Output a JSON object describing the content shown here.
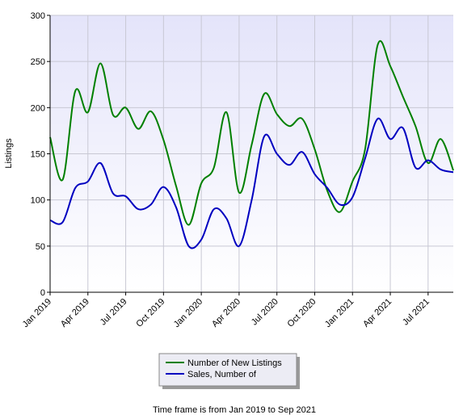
{
  "chart_data": {
    "type": "line",
    "y_label": "Listings",
    "categories": [
      "Jan 2019",
      null,
      null,
      "Apr 2019",
      null,
      null,
      "Jul 2019",
      null,
      null,
      "Oct 2019",
      null,
      null,
      "Jan 2020",
      null,
      null,
      "Apr 2020",
      null,
      null,
      "Jul 2020",
      null,
      null,
      "Oct 2020",
      null,
      null,
      "Jan 2021",
      null,
      null,
      "Apr 2021",
      null,
      null,
      "Jul 2021",
      null,
      null
    ],
    "series": [
      {
        "name": "Number of New Listings",
        "color": "#008000",
        "values": [
          168,
          122,
          218,
          195,
          248,
          192,
          200,
          177,
          196,
          165,
          115,
          73,
          118,
          135,
          195,
          108,
          160,
          215,
          193,
          180,
          188,
          155,
          110,
          87,
          120,
          155,
          268,
          245,
          212,
          180,
          140,
          166,
          132
        ]
      },
      {
        "name": "Sales, Number of",
        "color": "#0000c0",
        "values": [
          78,
          76,
          113,
          120,
          140,
          107,
          104,
          90,
          95,
          114,
          92,
          50,
          57,
          90,
          80,
          50,
          100,
          169,
          150,
          138,
          152,
          128,
          113,
          95,
          103,
          145,
          188,
          166,
          178,
          135,
          143,
          133,
          130
        ]
      }
    ],
    "ylim": [
      0,
      300
    ],
    "yticks": [
      0,
      50,
      100,
      150,
      200,
      250,
      300
    ],
    "grid": true,
    "footer": "Time frame is from Jan 2019 to Sep 2021"
  }
}
